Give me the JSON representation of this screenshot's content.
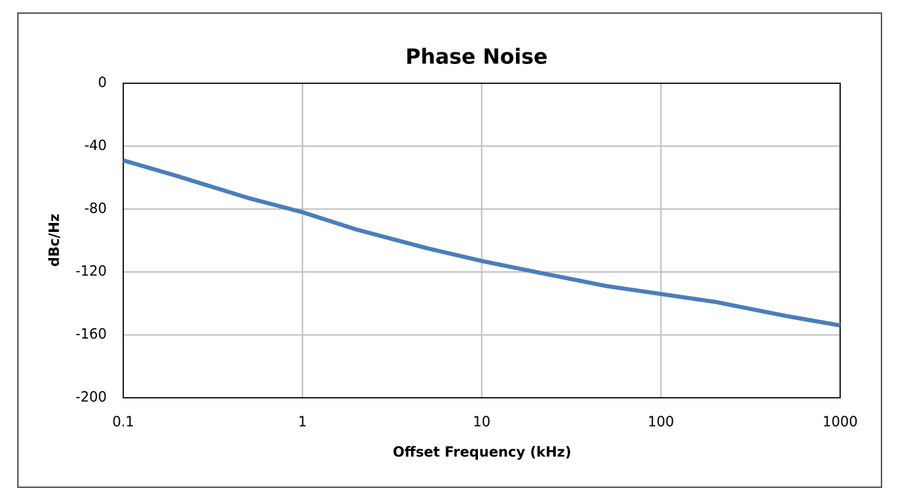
{
  "chart_data": {
    "type": "line",
    "title": "Phase Noise",
    "x_label": "Offset Frequency (kHz)",
    "y_label": "dBc/Hz",
    "x": [
      0.1,
      0.2,
      0.5,
      1,
      2,
      5,
      10,
      20,
      50,
      100,
      200,
      500,
      1000
    ],
    "values": [
      -49,
      -59,
      -73,
      -82,
      -93,
      -105,
      -113,
      -120,
      -129,
      -134,
      -139,
      -148,
      -154
    ],
    "color": "#4a7ebb",
    "xlim": [
      0.1,
      1000
    ],
    "xticks": [
      0.1,
      1,
      10,
      100,
      1000
    ],
    "xlog": true,
    "ylim": [
      -200,
      0
    ],
    "yticks": [
      -200,
      -160,
      -120,
      -80,
      -40,
      0
    ],
    "grid": true
  }
}
